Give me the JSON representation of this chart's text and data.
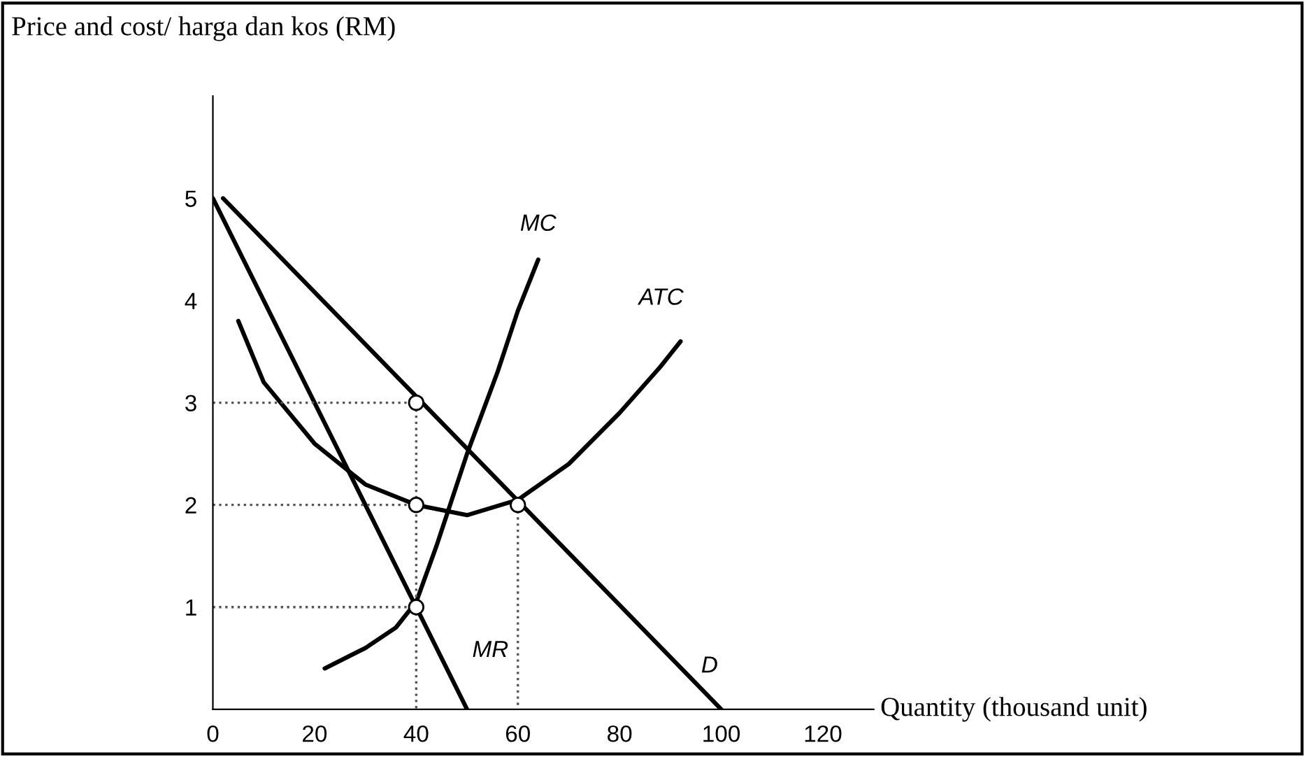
{
  "chart_data": {
    "type": "line",
    "xlabel": "Quantity (thousand unit)",
    "ylabel": "Price and cost/ harga dan kos (RM)",
    "xlim": [
      0,
      130
    ],
    "ylim": [
      0,
      6
    ],
    "xticks": [
      0,
      20,
      40,
      60,
      80,
      100,
      120
    ],
    "yticks": [
      1,
      2,
      3,
      4,
      5
    ],
    "grid": false,
    "legend": false,
    "marker": "none",
    "line_style": "solid",
    "series": [
      {
        "name": "D",
        "color": "#000000",
        "x": [
          2,
          100
        ],
        "values": [
          5,
          0
        ]
      },
      {
        "name": "MR",
        "color": "#000000",
        "x": [
          0,
          50
        ],
        "values": [
          5,
          0
        ]
      },
      {
        "name": "MC",
        "color": "#000000",
        "x": [
          22,
          30,
          36,
          40,
          44,
          50,
          56,
          60,
          64
        ],
        "values": [
          0.4,
          0.6,
          0.8,
          1.05,
          1.6,
          2.5,
          3.3,
          3.9,
          4.4
        ]
      },
      {
        "name": "ATC",
        "color": "#000000",
        "x": [
          5,
          10,
          20,
          30,
          40,
          50,
          60,
          70,
          80,
          88,
          92
        ],
        "values": [
          3.8,
          3.2,
          2.6,
          2.2,
          2.0,
          1.9,
          2.05,
          2.4,
          2.9,
          3.35,
          3.6
        ]
      },
      {
        "color": "#555555",
        "line_style": "dotted",
        "x": [
          0,
          40,
          40
        ],
        "values": [
          3,
          3,
          0
        ]
      },
      {
        "color": "#555555",
        "line_style": "dotted",
        "x": [
          0,
          40
        ],
        "values": [
          2,
          2
        ]
      },
      {
        "color": "#555555",
        "line_style": "dotted",
        "x": [
          0,
          40
        ],
        "values": [
          1,
          1
        ]
      },
      {
        "color": "#555555",
        "line_style": "dotted",
        "x": [
          60,
          60
        ],
        "values": [
          2,
          0
        ]
      },
      {
        "type": "scatter",
        "marker": "circle",
        "color": "#000000",
        "x": [
          40,
          40,
          40,
          60
        ],
        "values": [
          3,
          2,
          1,
          2
        ]
      }
    ]
  }
}
